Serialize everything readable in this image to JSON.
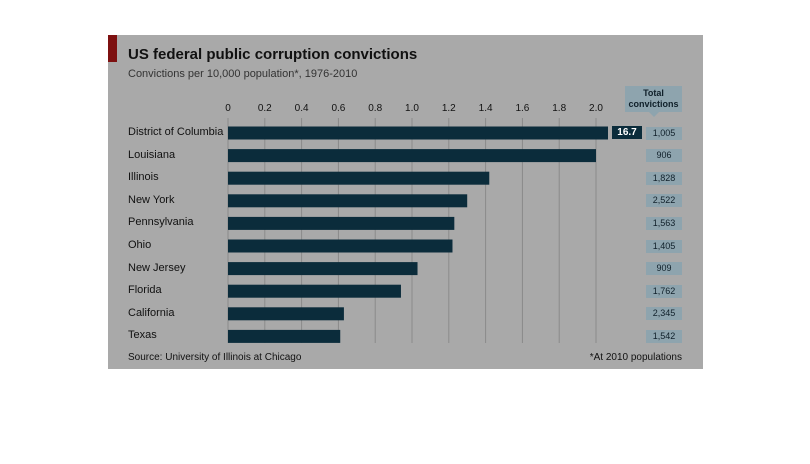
{
  "chart_data": {
    "type": "bar",
    "orientation": "horizontal",
    "title": "US federal public corruption convictions",
    "subtitle": "Convictions per 10,000 population*, 1976-2010",
    "categories": [
      "District of Columbia",
      "Louisiana",
      "Illinois",
      "New York",
      "Pennsylvania",
      "Ohio",
      "New Jersey",
      "Florida",
      "California",
      "Texas"
    ],
    "values": [
      16.7,
      2.0,
      1.42,
      1.3,
      1.23,
      1.22,
      1.03,
      0.94,
      0.63,
      0.61
    ],
    "value_labels": [
      "16.7",
      "",
      "",
      "",
      "",
      "",
      "",
      "",
      "",
      ""
    ],
    "truncated": [
      true,
      false,
      false,
      false,
      false,
      false,
      false,
      false,
      false,
      false
    ],
    "xlim": [
      0,
      2.2
    ],
    "xticks": [
      0,
      0.2,
      0.4,
      0.6,
      0.8,
      1.0,
      1.2,
      1.4,
      1.6,
      1.8,
      2.0
    ],
    "xtick_labels": [
      "0",
      "0.2",
      "0.4",
      "0.6",
      "0.8",
      "1.0",
      "1.2",
      "1.4",
      "1.6",
      "1.8",
      "2.0"
    ],
    "grid": true,
    "totals_header": "Total convictions",
    "totals": [
      "1,005",
      "906",
      "1,828",
      "2,522",
      "1,563",
      "1,405",
      "909",
      "1,762",
      "2,345",
      "1,542"
    ],
    "source": "Source: University of Illinois at Chicago",
    "footnote": "*At 2010 populations",
    "colors": {
      "bar": "#0b2c3b",
      "panel": "#a9a9a9",
      "accent": "#7d1010",
      "totals_box": "#8ea4ae"
    }
  }
}
